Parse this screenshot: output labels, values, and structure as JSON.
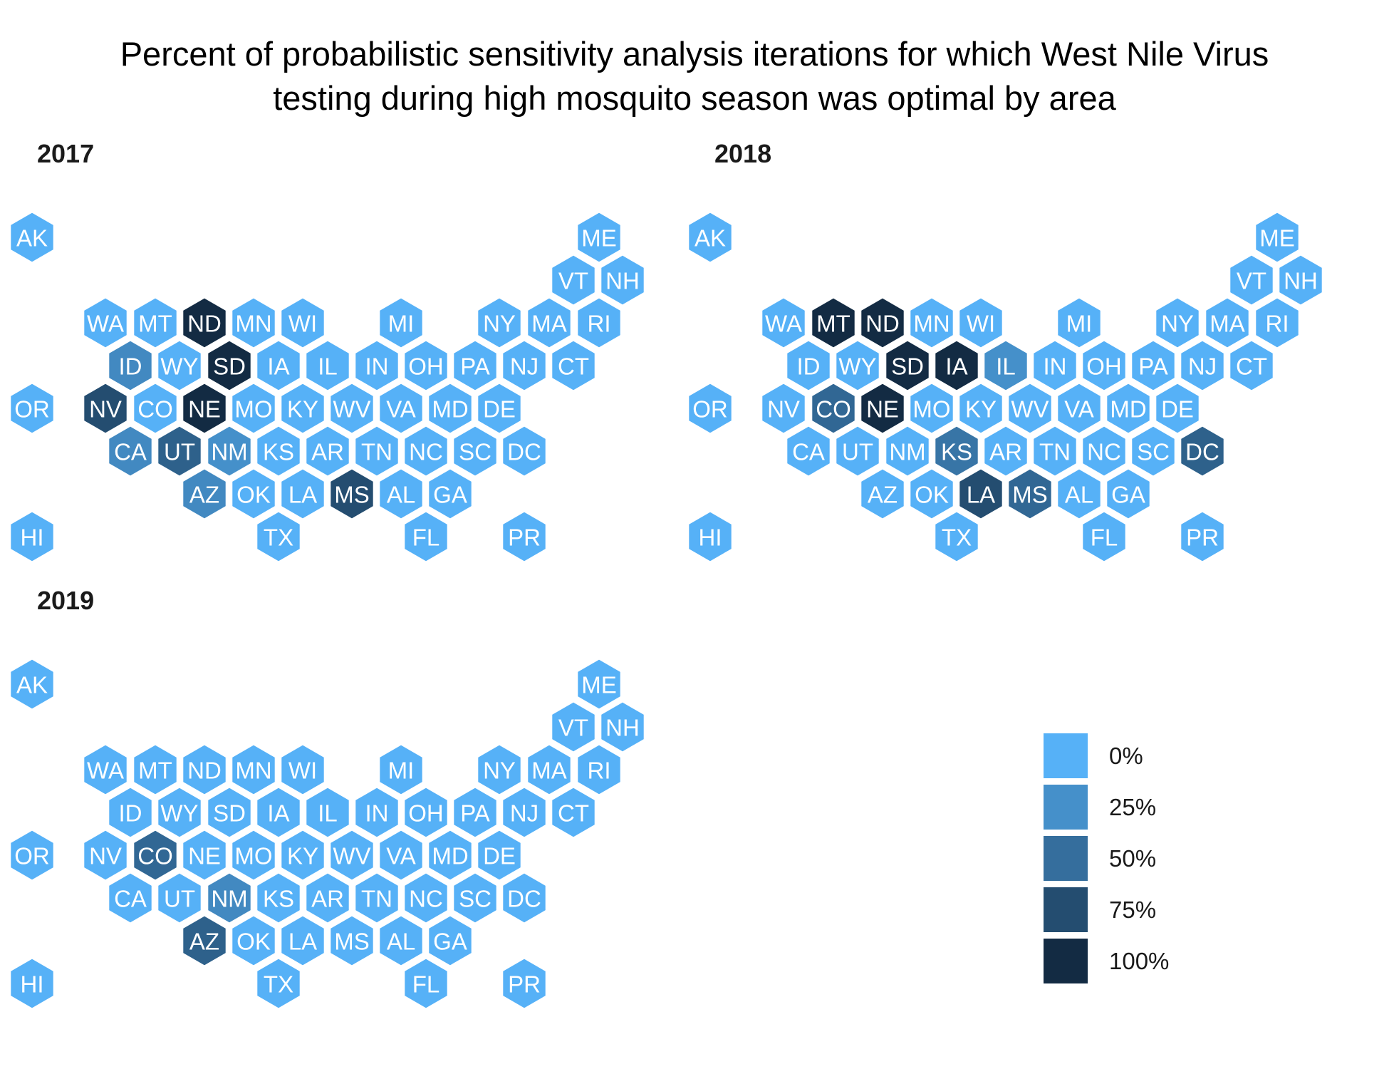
{
  "title": {
    "line1": "Percent of probabilistic sensitivity analysis iterations for which West Nile Virus",
    "line2": "testing during high mosquito season was optimal by area"
  },
  "colors": {
    "p0": "#56B1F7",
    "p25": "#4A90CC",
    "p50": "#37689A",
    "p75": "#244568",
    "p100": "#132B43"
  },
  "chart_data": {
    "type": "hex-tile-map",
    "value_unit": "%",
    "legend": {
      "position": "bottom-right",
      "items": [
        {
          "label": "0%",
          "value": 0
        },
        {
          "label": "25%",
          "value": 25
        },
        {
          "label": "50%",
          "value": 50
        },
        {
          "label": "75%",
          "value": 75
        },
        {
          "label": "100%",
          "value": 100
        }
      ]
    },
    "panels": [
      {
        "label": "2017",
        "values": {
          "ND": 100,
          "SD": 100,
          "NE": 100,
          "NV": 75,
          "MS": 75,
          "UT": 60,
          "ID": 30,
          "CA": 30,
          "AZ": 30,
          "NM": 25
        }
      },
      {
        "label": "2018",
        "values": {
          "MT": 100,
          "ND": 100,
          "SD": 100,
          "IA": 100,
          "NE": 100,
          "LA": 75,
          "DC": 60,
          "CO": 55,
          "MS": 55,
          "KS": 45,
          "IL": 25
        }
      },
      {
        "label": "2019",
        "values": {
          "AZ": 60,
          "CO": 55,
          "NM": 30
        }
      }
    ]
  }
}
